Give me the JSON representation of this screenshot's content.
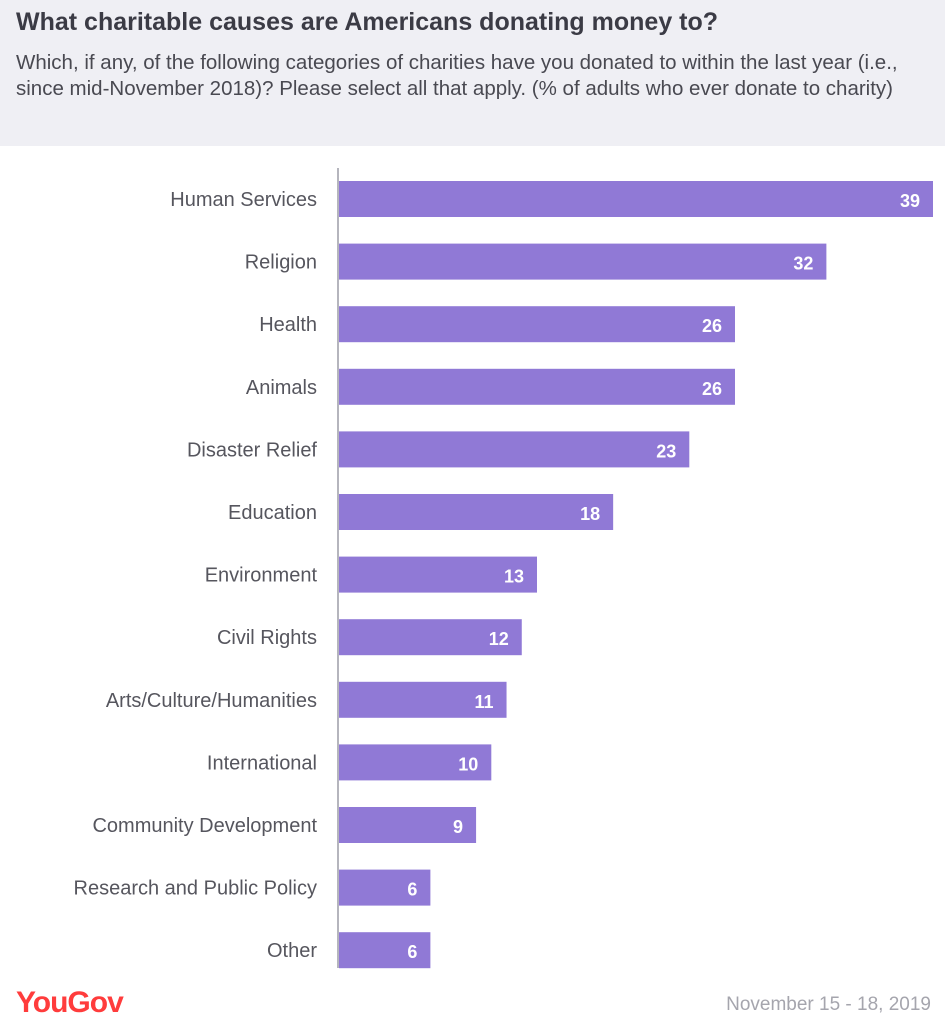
{
  "header": {
    "title": "What charitable causes are Americans donating money to?",
    "subtitle": "Which, if any, of the following categories of charities have you donated to within the last year (i.e., since mid-November 2018)? Please select all that apply. (% of adults who ever donate to charity)"
  },
  "footer": {
    "logo": "YouGov",
    "date": "November 15 - 18, 2019"
  },
  "colors": {
    "bar": "#9079d6",
    "axis": "#b5b5bd"
  },
  "chart_data": {
    "type": "bar",
    "orientation": "horizontal",
    "title": "What charitable causes are Americans donating money to?",
    "xlabel": "",
    "ylabel": "",
    "xlim": [
      0,
      39
    ],
    "grid": false,
    "categories": [
      "Human Services",
      "Religion",
      "Health",
      "Animals",
      "Disaster Relief",
      "Education",
      "Environment",
      "Civil Rights",
      "Arts/Culture/Humanities",
      "International",
      "Community Development",
      "Research and Public Policy",
      "Other"
    ],
    "values": [
      39,
      32,
      26,
      26,
      23,
      18,
      13,
      12,
      11,
      10,
      9,
      6,
      6
    ]
  }
}
